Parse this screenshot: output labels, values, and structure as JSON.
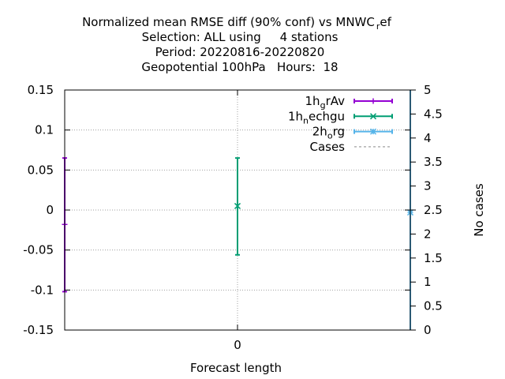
{
  "chart_data": {
    "type": "errorbar",
    "title_lines": [
      "Normalized mean RMSE diff (90% conf) vs MNWC_ref",
      "Selection: ALL using     4 stations",
      "Period: 20220816-20220820",
      "Geopotential 100hPa   Hours:  18"
    ],
    "title_line1_parts": {
      "main": "Normalized mean RMSE diff (90% conf) vs MNWC",
      "sub": "r",
      "tail": "ef"
    },
    "xlabel": "Forecast length",
    "ylabel_right": "No cases",
    "x_ticks": [
      0
    ],
    "x_range": [
      -0.5,
      0.5
    ],
    "ylim": [
      -0.15,
      0.15
    ],
    "y_ticks": [
      -0.15,
      -0.1,
      -0.05,
      0,
      0.05,
      0.1,
      0.15
    ],
    "y_tick_labels": [
      "-0.15",
      "-0.1",
      "-0.05",
      "0",
      "0.05",
      "0.1",
      "0.15"
    ],
    "y2lim": [
      0,
      5
    ],
    "y2_ticks": [
      0,
      0.5,
      1,
      1.5,
      2,
      2.5,
      3,
      3.5,
      4,
      4.5,
      5
    ],
    "y2_tick_labels": [
      "0",
      "0.5",
      "1",
      "1.5",
      "2",
      "2.5",
      "3",
      "3.5",
      "4",
      "4.5",
      "5"
    ],
    "grid": true,
    "legend_position": "top-right",
    "series": [
      {
        "name": "1h_grAv",
        "name_main": "1h",
        "name_sub": "g",
        "name_tail": "rAv",
        "color": "#9400d3",
        "marker": "plus",
        "x": -0.5,
        "y": -0.018,
        "ylow": -0.102,
        "yhigh": 0.065
      },
      {
        "name": "1h_nechgu",
        "name_main": "1h",
        "name_sub": "n",
        "name_tail": "echgu",
        "color": "#009e73",
        "marker": "cross",
        "x": 0,
        "y": 0.005,
        "ylow": -0.056,
        "yhigh": 0.065
      },
      {
        "name": "2h_org",
        "name_main": "2h",
        "name_sub": "o",
        "name_tail": "rg",
        "color": "#56b4e9",
        "marker": "star",
        "x": 0.5,
        "y": -0.003,
        "ylow": -0.15,
        "yhigh": 0.15
      }
    ],
    "cases": {
      "name": "Cases",
      "color": "#a0a0a0",
      "dash": true
    }
  }
}
